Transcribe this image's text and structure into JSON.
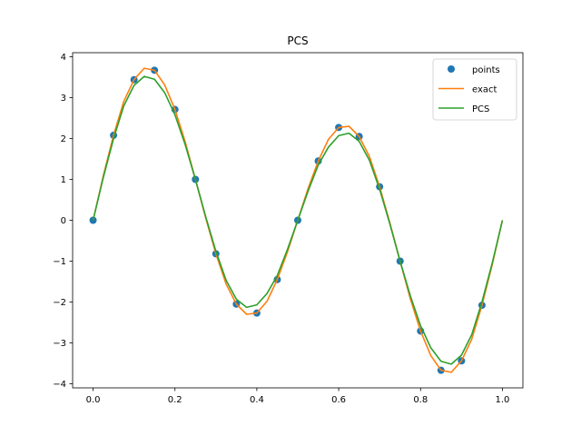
{
  "chart_data": {
    "type": "line",
    "title": "PCS",
    "xlabel": "",
    "ylabel": "",
    "xlim": [
      -0.05,
      1.05
    ],
    "ylim": [
      -4.1,
      4.1
    ],
    "xticks": [
      0.0,
      0.2,
      0.4,
      0.6,
      0.8,
      1.0
    ],
    "xtick_labels": [
      "0.0",
      "0.2",
      "0.4",
      "0.6",
      "0.8",
      "1.0"
    ],
    "yticks": [
      -4,
      -3,
      -2,
      -1,
      0,
      1,
      2,
      3,
      4
    ],
    "ytick_labels": [
      "−4",
      "−3",
      "−2",
      "−1",
      "0",
      "1",
      "2",
      "3",
      "4"
    ],
    "grid": false,
    "legend_position": "top-right",
    "series": [
      {
        "name": "points",
        "style": "markers",
        "color": "#1f77b4",
        "x": [
          0.0,
          0.05,
          0.1,
          0.15,
          0.2,
          0.25,
          0.3,
          0.35,
          0.4,
          0.45,
          0.5,
          0.55,
          0.6,
          0.65,
          0.7,
          0.75,
          0.8,
          0.85,
          0.9,
          0.95
        ],
        "y": [
          0.0,
          2.08,
          3.44,
          3.67,
          2.71,
          1.0,
          -0.82,
          -2.05,
          -2.27,
          -1.45,
          0.0,
          1.45,
          2.27,
          2.05,
          0.82,
          -1.0,
          -2.71,
          -3.67,
          -3.44,
          -2.08
        ]
      },
      {
        "name": "exact",
        "style": "line",
        "color": "#ff7f0e",
        "x": [
          0.0,
          0.025,
          0.05,
          0.075,
          0.1,
          0.125,
          0.15,
          0.175,
          0.2,
          0.225,
          0.25,
          0.275,
          0.3,
          0.325,
          0.35,
          0.375,
          0.4,
          0.425,
          0.45,
          0.475,
          0.5,
          0.525,
          0.55,
          0.575,
          0.6,
          0.625,
          0.65,
          0.675,
          0.7,
          0.725,
          0.75,
          0.775,
          0.8,
          0.825,
          0.85,
          0.875,
          0.9,
          0.925,
          0.95,
          0.975,
          1.0
        ],
        "y": [
          0.0,
          1.09,
          2.08,
          2.91,
          3.44,
          3.72,
          3.67,
          3.31,
          2.71,
          1.92,
          1.0,
          0.06,
          -0.82,
          -1.56,
          -2.05,
          -2.3,
          -2.27,
          -1.98,
          -1.45,
          -0.77,
          0.0,
          0.77,
          1.45,
          1.98,
          2.27,
          2.3,
          2.05,
          1.56,
          0.82,
          -0.06,
          -1.0,
          -1.92,
          -2.71,
          -3.31,
          -3.67,
          -3.72,
          -3.44,
          -2.91,
          -2.08,
          -1.09,
          0.0
        ]
      },
      {
        "name": "PCS",
        "style": "line",
        "color": "#2ca02c",
        "x": [
          0.0,
          0.025,
          0.05,
          0.075,
          0.1,
          0.125,
          0.15,
          0.175,
          0.2,
          0.225,
          0.25,
          0.275,
          0.3,
          0.325,
          0.35,
          0.375,
          0.4,
          0.425,
          0.45,
          0.475,
          0.5,
          0.525,
          0.55,
          0.575,
          0.6,
          0.625,
          0.65,
          0.675,
          0.7,
          0.725,
          0.75,
          0.775,
          0.8,
          0.825,
          0.85,
          0.875,
          0.9,
          0.925,
          0.95,
          0.975,
          1.0
        ],
        "y": [
          0.0,
          1.05,
          2.0,
          2.8,
          3.3,
          3.52,
          3.45,
          3.12,
          2.58,
          1.85,
          1.0,
          0.09,
          -0.76,
          -1.47,
          -1.93,
          -2.13,
          -2.07,
          -1.79,
          -1.35,
          -0.71,
          0.0,
          0.71,
          1.35,
          1.79,
          2.07,
          2.13,
          1.93,
          1.47,
          0.76,
          -0.09,
          -1.0,
          -1.85,
          -2.58,
          -3.12,
          -3.45,
          -3.52,
          -3.3,
          -2.8,
          -2.0,
          -1.05,
          0.0
        ]
      }
    ]
  }
}
